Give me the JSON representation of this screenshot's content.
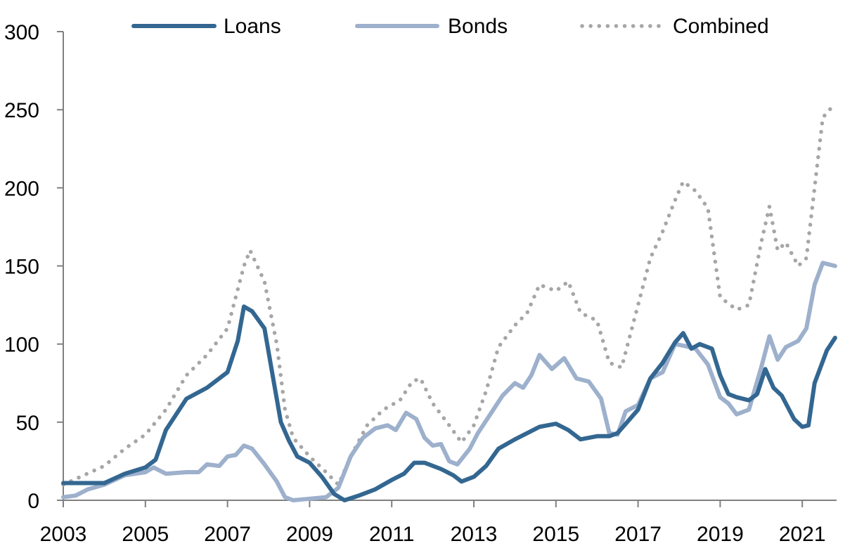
{
  "chart_data": {
    "type": "line",
    "title": "",
    "xlabel": "",
    "ylabel": "",
    "xlim": [
      2003,
      2021.8
    ],
    "ylim": [
      0,
      300
    ],
    "x_ticks": [
      "2003",
      "2005",
      "2007",
      "2009",
      "2011",
      "2013",
      "2015",
      "2017",
      "2019",
      "2021"
    ],
    "y_ticks": [
      "0",
      "50",
      "100",
      "150",
      "200",
      "250",
      "300"
    ],
    "grid": false,
    "legend_position": "top",
    "series": [
      {
        "name": "Loans",
        "color": "#336791",
        "style": "solid",
        "points": [
          [
            2003.0,
            11
          ],
          [
            2003.5,
            11
          ],
          [
            2004.0,
            11
          ],
          [
            2004.5,
            17
          ],
          [
            2005.0,
            21
          ],
          [
            2005.25,
            26
          ],
          [
            2005.5,
            45
          ],
          [
            2006.0,
            65
          ],
          [
            2006.5,
            72
          ],
          [
            2007.0,
            82
          ],
          [
            2007.25,
            102
          ],
          [
            2007.4,
            124
          ],
          [
            2007.6,
            121
          ],
          [
            2007.9,
            110
          ],
          [
            2008.1,
            80
          ],
          [
            2008.3,
            50
          ],
          [
            2008.5,
            38
          ],
          [
            2008.7,
            28
          ],
          [
            2009.0,
            24
          ],
          [
            2009.3,
            15
          ],
          [
            2009.6,
            4
          ],
          [
            2009.85,
            0
          ],
          [
            2010.2,
            3
          ],
          [
            2010.6,
            7
          ],
          [
            2011.0,
            13
          ],
          [
            2011.3,
            17
          ],
          [
            2011.55,
            24
          ],
          [
            2011.8,
            24
          ],
          [
            2012.2,
            20
          ],
          [
            2012.5,
            16
          ],
          [
            2012.7,
            12
          ],
          [
            2013.0,
            15
          ],
          [
            2013.3,
            22
          ],
          [
            2013.6,
            33
          ],
          [
            2014.0,
            39
          ],
          [
            2014.3,
            43
          ],
          [
            2014.6,
            47
          ],
          [
            2015.0,
            49
          ],
          [
            2015.3,
            45
          ],
          [
            2015.6,
            39
          ],
          [
            2016.0,
            41
          ],
          [
            2016.3,
            41
          ],
          [
            2016.5,
            43
          ],
          [
            2016.7,
            49
          ],
          [
            2017.0,
            58
          ],
          [
            2017.3,
            78
          ],
          [
            2017.6,
            88
          ],
          [
            2017.9,
            101
          ],
          [
            2018.1,
            107
          ],
          [
            2018.3,
            97
          ],
          [
            2018.5,
            100
          ],
          [
            2018.8,
            97
          ],
          [
            2019.0,
            80
          ],
          [
            2019.2,
            68
          ],
          [
            2019.4,
            66
          ],
          [
            2019.7,
            64
          ],
          [
            2019.9,
            68
          ],
          [
            2020.1,
            84
          ],
          [
            2020.3,
            72
          ],
          [
            2020.5,
            67
          ],
          [
            2020.8,
            52
          ],
          [
            2021.0,
            47
          ],
          [
            2021.15,
            48
          ],
          [
            2021.3,
            75
          ],
          [
            2021.6,
            96
          ],
          [
            2021.8,
            104
          ]
        ]
      },
      {
        "name": "Bonds",
        "color": "#9db0cc",
        "style": "solid",
        "points": [
          [
            2003.0,
            2
          ],
          [
            2003.3,
            3
          ],
          [
            2003.6,
            7
          ],
          [
            2004.0,
            10
          ],
          [
            2004.5,
            16
          ],
          [
            2005.0,
            18
          ],
          [
            2005.2,
            21
          ],
          [
            2005.5,
            17
          ],
          [
            2006.0,
            18
          ],
          [
            2006.3,
            18
          ],
          [
            2006.5,
            23
          ],
          [
            2006.8,
            22
          ],
          [
            2007.0,
            28
          ],
          [
            2007.2,
            29
          ],
          [
            2007.4,
            35
          ],
          [
            2007.6,
            33
          ],
          [
            2007.9,
            23
          ],
          [
            2008.2,
            12
          ],
          [
            2008.4,
            2
          ],
          [
            2008.6,
            0
          ],
          [
            2009.0,
            1
          ],
          [
            2009.4,
            2
          ],
          [
            2009.7,
            8
          ],
          [
            2010.0,
            28
          ],
          [
            2010.3,
            40
          ],
          [
            2010.6,
            46
          ],
          [
            2010.9,
            48
          ],
          [
            2011.1,
            45
          ],
          [
            2011.35,
            56
          ],
          [
            2011.6,
            52
          ],
          [
            2011.8,
            40
          ],
          [
            2012.0,
            35
          ],
          [
            2012.2,
            36
          ],
          [
            2012.4,
            25
          ],
          [
            2012.6,
            23
          ],
          [
            2012.9,
            33
          ],
          [
            2013.1,
            43
          ],
          [
            2013.4,
            55
          ],
          [
            2013.7,
            67
          ],
          [
            2014.0,
            75
          ],
          [
            2014.2,
            72
          ],
          [
            2014.4,
            80
          ],
          [
            2014.6,
            93
          ],
          [
            2014.9,
            84
          ],
          [
            2015.2,
            91
          ],
          [
            2015.5,
            78
          ],
          [
            2015.8,
            76
          ],
          [
            2016.1,
            65
          ],
          [
            2016.3,
            43
          ],
          [
            2016.5,
            42
          ],
          [
            2016.7,
            57
          ],
          [
            2017.0,
            61
          ],
          [
            2017.3,
            78
          ],
          [
            2017.6,
            82
          ],
          [
            2017.9,
            100
          ],
          [
            2018.1,
            99
          ],
          [
            2018.4,
            97
          ],
          [
            2018.7,
            87
          ],
          [
            2019.0,
            66
          ],
          [
            2019.2,
            62
          ],
          [
            2019.4,
            55
          ],
          [
            2019.7,
            58
          ],
          [
            2020.0,
            85
          ],
          [
            2020.2,
            105
          ],
          [
            2020.4,
            90
          ],
          [
            2020.6,
            98
          ],
          [
            2020.9,
            102
          ],
          [
            2021.1,
            110
          ],
          [
            2021.3,
            138
          ],
          [
            2021.5,
            152
          ],
          [
            2021.8,
            150
          ]
        ]
      },
      {
        "name": "Combined",
        "color": "#a6a6a6",
        "style": "dotted",
        "points": [
          [
            2003.0,
            10
          ],
          [
            2003.5,
            16
          ],
          [
            2004.0,
            22
          ],
          [
            2004.5,
            33
          ],
          [
            2005.0,
            42
          ],
          [
            2005.5,
            58
          ],
          [
            2006.0,
            80
          ],
          [
            2006.5,
            93
          ],
          [
            2007.0,
            110
          ],
          [
            2007.4,
            150
          ],
          [
            2007.55,
            160
          ],
          [
            2007.9,
            140
          ],
          [
            2008.2,
            100
          ],
          [
            2008.4,
            58
          ],
          [
            2008.6,
            40
          ],
          [
            2009.0,
            28
          ],
          [
            2009.4,
            18
          ],
          [
            2009.7,
            10
          ],
          [
            2010.0,
            28
          ],
          [
            2010.4,
            48
          ],
          [
            2010.8,
            58
          ],
          [
            2011.2,
            64
          ],
          [
            2011.5,
            76
          ],
          [
            2011.7,
            78
          ],
          [
            2012.0,
            62
          ],
          [
            2012.4,
            48
          ],
          [
            2012.7,
            37
          ],
          [
            2013.0,
            48
          ],
          [
            2013.3,
            70
          ],
          [
            2013.6,
            98
          ],
          [
            2014.0,
            112
          ],
          [
            2014.3,
            120
          ],
          [
            2014.6,
            138
          ],
          [
            2015.0,
            134
          ],
          [
            2015.3,
            140
          ],
          [
            2015.6,
            120
          ],
          [
            2016.0,
            115
          ],
          [
            2016.3,
            88
          ],
          [
            2016.6,
            85
          ],
          [
            2017.0,
            125
          ],
          [
            2017.3,
            155
          ],
          [
            2017.6,
            172
          ],
          [
            2017.9,
            192
          ],
          [
            2018.1,
            204
          ],
          [
            2018.4,
            198
          ],
          [
            2018.7,
            187
          ],
          [
            2019.0,
            130
          ],
          [
            2019.4,
            122
          ],
          [
            2019.7,
            125
          ],
          [
            2020.0,
            165
          ],
          [
            2020.2,
            188
          ],
          [
            2020.4,
            160
          ],
          [
            2020.6,
            165
          ],
          [
            2020.9,
            150
          ],
          [
            2021.1,
            155
          ],
          [
            2021.3,
            200
          ],
          [
            2021.5,
            245
          ],
          [
            2021.8,
            254
          ]
        ]
      }
    ]
  }
}
